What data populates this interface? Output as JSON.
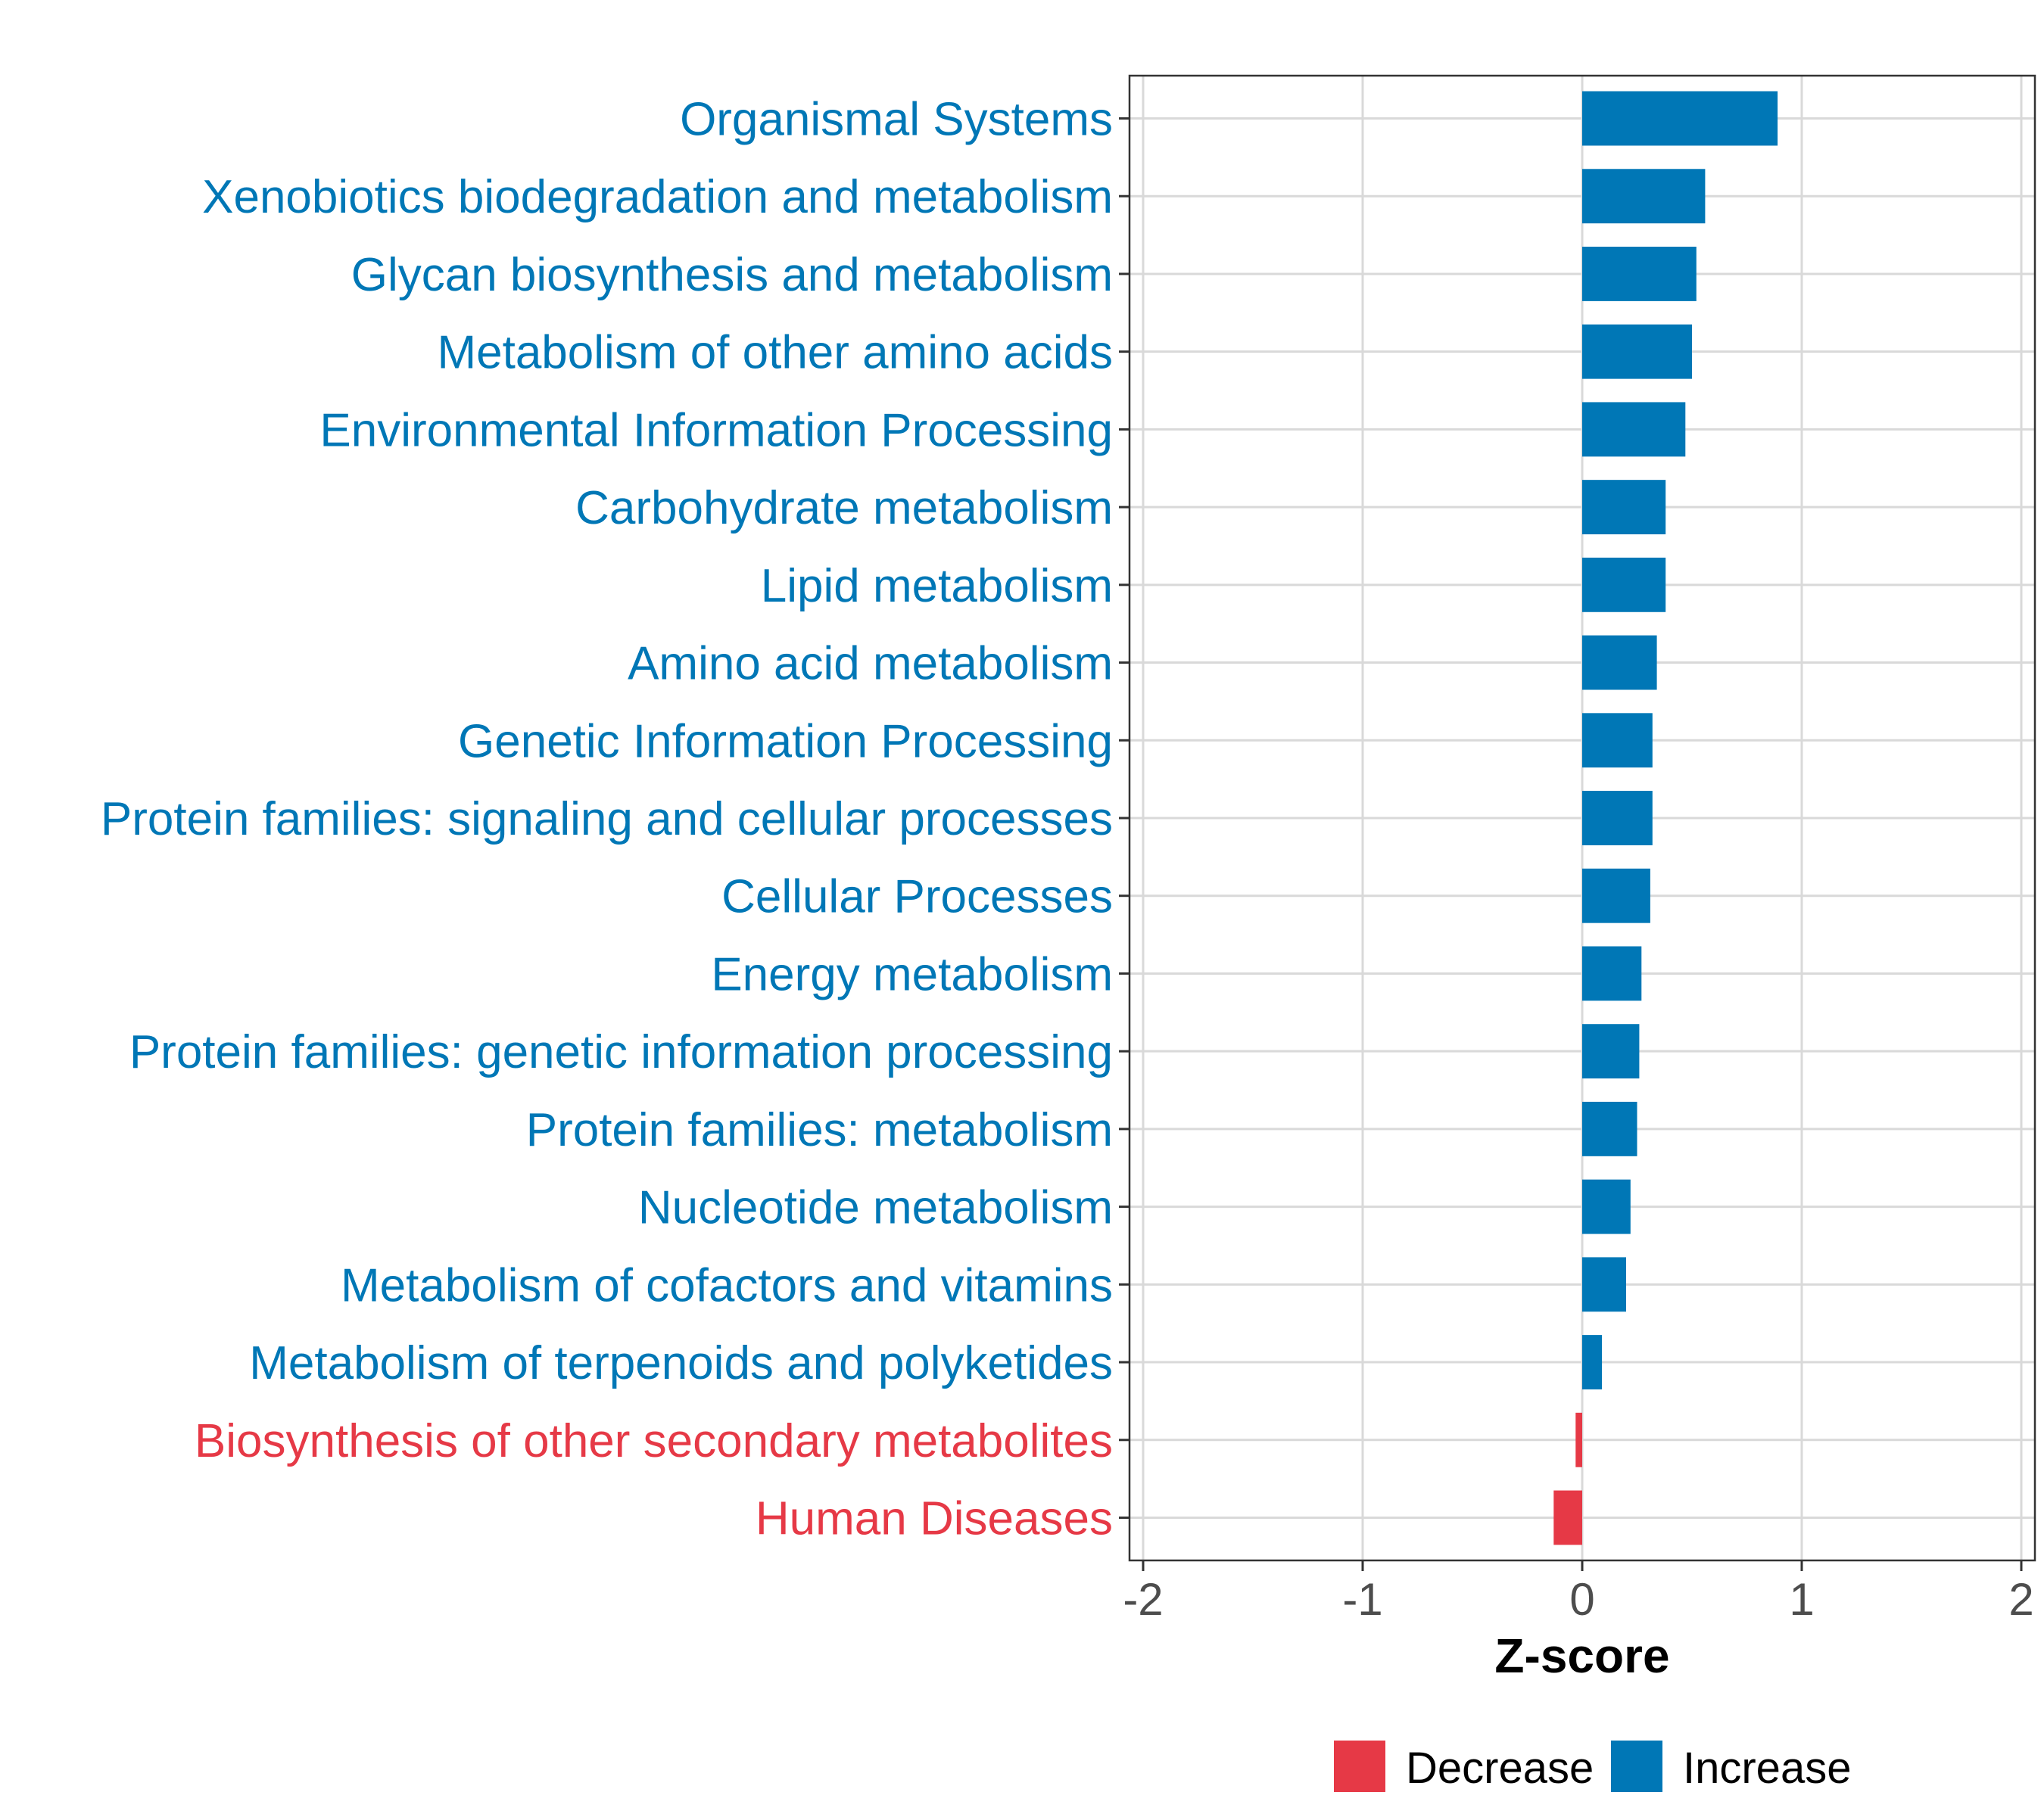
{
  "chart_data": {
    "type": "bar",
    "orientation": "horizontal",
    "title": "",
    "xlabel": "Z-score",
    "ylabel": "",
    "xlim": [
      -2,
      2
    ],
    "x_ticks": [
      -2,
      -1,
      0,
      1,
      2
    ],
    "x_tick_labels": [
      "-2",
      "-1",
      "0",
      "1",
      "2"
    ],
    "grid": true,
    "legend_placement": "bottom",
    "colors": {
      "Decrease": "#E63946",
      "Increase": "#0077B6"
    },
    "categories": [
      "Organismal Systems",
      "Xenobiotics biodegradation and metabolism",
      "Glycan biosynthesis and metabolism",
      "Metabolism of other amino acids",
      "Environmental Information Processing",
      "Carbohydrate metabolism",
      "Lipid metabolism",
      "Amino acid metabolism",
      "Genetic Information Processing",
      "Protein families: signaling and cellular processes",
      "Cellular Processes",
      "Energy metabolism",
      "Protein families: genetic information processing",
      "Protein families: metabolism",
      "Nucleotide metabolism",
      "Metabolism of cofactors and vitamins",
      "Metabolism of terpenoids and polyketides",
      "Biosynthesis of other secondary metabolites",
      "Human Diseases"
    ],
    "values": [
      0.89,
      0.56,
      0.52,
      0.5,
      0.47,
      0.38,
      0.38,
      0.34,
      0.32,
      0.32,
      0.31,
      0.27,
      0.26,
      0.25,
      0.22,
      0.2,
      0.09,
      -0.03,
      -0.13
    ],
    "groups": [
      "Increase",
      "Increase",
      "Increase",
      "Increase",
      "Increase",
      "Increase",
      "Increase",
      "Increase",
      "Increase",
      "Increase",
      "Increase",
      "Increase",
      "Increase",
      "Increase",
      "Increase",
      "Increase",
      "Increase",
      "Decrease",
      "Decrease"
    ],
    "legend": [
      {
        "label": "Decrease"
      },
      {
        "label": "Increase"
      }
    ]
  }
}
